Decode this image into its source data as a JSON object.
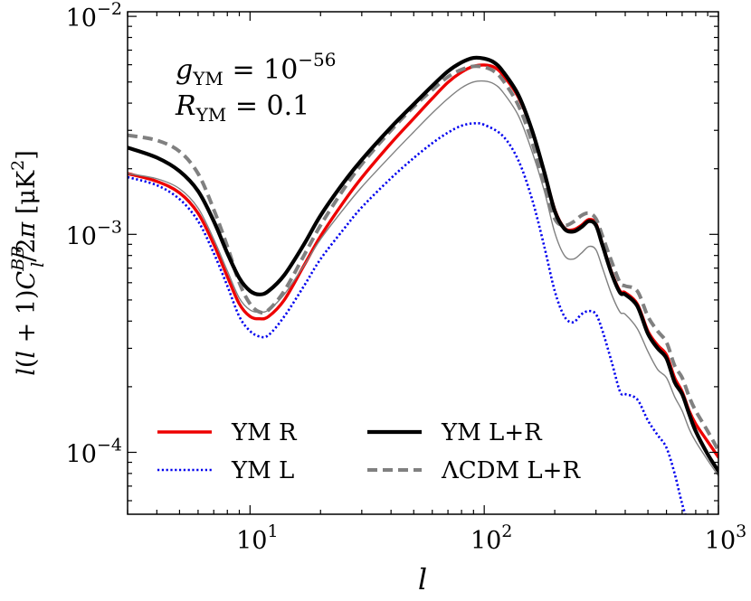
{
  "chart_data": {
    "type": "line",
    "title": "",
    "xlabel": "l",
    "ylabel": "l(l + 1)C_l^{BB}/2π  [μK²]",
    "xscale": "log",
    "yscale": "log",
    "xlim": [
      3,
      1000
    ],
    "ylim": [
      5.2e-05,
      0.0105
    ],
    "grid": false,
    "legend_position": "lower-left",
    "x_ticks": [
      {
        "value": 10,
        "base": "10",
        "exp": "1"
      },
      {
        "value": 100,
        "base": "10",
        "exp": "2"
      },
      {
        "value": 1000,
        "base": "10",
        "exp": "3"
      }
    ],
    "y_ticks": [
      {
        "value": 0.0001,
        "base": "10",
        "exp": "−4"
      },
      {
        "value": 0.001,
        "base": "10",
        "exp": "−3"
      },
      {
        "value": 0.01,
        "base": "10",
        "exp": "−2"
      }
    ],
    "annotations": [
      {
        "main": "g",
        "sub": "YM",
        "rest": " = 10",
        "sup": "−56"
      },
      {
        "main": "R",
        "sub": "YM",
        "rest": " = 0.1",
        "sup": ""
      }
    ],
    "series": [
      {
        "name": "YM L",
        "legend_label": "YM L",
        "color": "#0000ee",
        "style": "dotted",
        "x": [
          3,
          4,
          5,
          6,
          7,
          8,
          9,
          10,
          11,
          12,
          14,
          17,
          20,
          25,
          30,
          40,
          50,
          60,
          70,
          80,
          90,
          100,
          120,
          140,
          160,
          180,
          200,
          220,
          240,
          260,
          280,
          300,
          320,
          350,
          380,
          400,
          450,
          500,
          550,
          600,
          650,
          700,
          750
        ],
        "y": [
          0.00183,
          0.00168,
          0.00145,
          0.00115,
          0.00082,
          0.00058,
          0.00042,
          0.00036,
          0.00034,
          0.000345,
          0.00042,
          0.00058,
          0.00077,
          0.00105,
          0.00133,
          0.00181,
          0.00224,
          0.00262,
          0.00293,
          0.00315,
          0.00323,
          0.00318,
          0.00283,
          0.00218,
          0.00145,
          0.00089,
          0.00055,
          0.00042,
          0.000395,
          0.00043,
          0.000445,
          0.00043,
          0.00036,
          0.00026,
          0.00019,
          0.000185,
          0.000175,
          0.00014,
          0.00012,
          0.000105,
          8e-05,
          5.8e-05,
          4.6e-05
        ]
      },
      {
        "name": "YM R",
        "legend_label": "YM R",
        "color": "#ee0000",
        "style": "solid-medium",
        "x": [
          3,
          4,
          5,
          6,
          7,
          8,
          9,
          10,
          11,
          12,
          14,
          17,
          20,
          25,
          30,
          40,
          50,
          60,
          70,
          80,
          90,
          100,
          110,
          120,
          140,
          160,
          180,
          200,
          220,
          240,
          260,
          280,
          300,
          320,
          350,
          380,
          400,
          450,
          500,
          550,
          600,
          650,
          700,
          750,
          800,
          900,
          1000
        ],
        "y": [
          0.0019,
          0.00175,
          0.00155,
          0.00125,
          0.0009,
          0.00064,
          0.00048,
          0.00042,
          0.00041,
          0.00042,
          0.0005,
          0.00072,
          0.00098,
          0.0014,
          0.00182,
          0.00262,
          0.0034,
          0.0042,
          0.00498,
          0.00555,
          0.0059,
          0.00598,
          0.00585,
          0.0054,
          0.00425,
          0.003,
          0.00195,
          0.0013,
          0.00107,
          0.00105,
          0.0011,
          0.00117,
          0.00112,
          0.0009,
          0.00067,
          0.00055,
          0.00054,
          0.00048,
          0.00036,
          0.00031,
          0.00028,
          0.00022,
          0.00019,
          0.000155,
          0.000135,
          0.000112,
          9.5e-05
        ]
      },
      {
        "name": "YM L+R (thin)",
        "color": "#808080",
        "style": "solid-thin",
        "x": [
          3,
          4,
          5,
          6,
          7,
          8,
          9,
          10,
          11,
          12,
          14,
          17,
          20,
          25,
          30,
          40,
          50,
          60,
          70,
          80,
          90,
          100,
          110,
          120,
          140,
          160,
          180,
          200,
          220,
          240,
          260,
          280,
          300,
          320,
          350,
          380,
          400,
          450,
          500,
          550,
          600,
          650,
          700,
          750,
          800,
          900,
          1000
        ],
        "y": [
          0.0019,
          0.0018,
          0.00162,
          0.00132,
          0.00095,
          0.00068,
          0.00051,
          0.00045,
          0.00044,
          0.00045,
          0.00053,
          0.00072,
          0.00095,
          0.0013,
          0.00165,
          0.0023,
          0.00295,
          0.0036,
          0.0042,
          0.0047,
          0.005,
          0.00505,
          0.0049,
          0.0045,
          0.0035,
          0.0024,
          0.0016,
          0.00102,
          0.0008,
          0.00077,
          0.00082,
          0.00088,
          0.00085,
          0.0007,
          0.00053,
          0.00044,
          0.00043,
          0.00037,
          0.00029,
          0.00024,
          0.00022,
          0.00018,
          0.000155,
          0.000128,
          0.000112,
          9.2e-05,
          7.8e-05
        ]
      },
      {
        "name": "ΛCDM L+R",
        "legend_label": "ΛCDM L+R",
        "color": "#808080",
        "style": "dashed",
        "x": [
          3,
          4,
          5,
          6,
          7,
          8,
          9,
          10,
          11,
          12,
          14,
          17,
          20,
          25,
          30,
          40,
          50,
          60,
          70,
          80,
          90,
          100,
          110,
          120,
          140,
          160,
          180,
          200,
          220,
          240,
          260,
          280,
          300,
          320,
          350,
          380,
          400,
          450,
          500,
          550,
          600,
          650,
          700,
          750,
          800,
          900,
          1000
        ],
        "y": [
          0.00285,
          0.0027,
          0.0024,
          0.0019,
          0.0013,
          0.00088,
          0.0006,
          0.00048,
          0.00044,
          0.00045,
          0.00055,
          0.0008,
          0.0011,
          0.0016,
          0.0021,
          0.003,
          0.00385,
          0.0046,
          0.00528,
          0.0057,
          0.0059,
          0.00585,
          0.0056,
          0.0051,
          0.0039,
          0.00265,
          0.0017,
          0.00118,
          0.0011,
          0.00114,
          0.00122,
          0.00125,
          0.00118,
          0.00098,
          0.00075,
          0.0006,
          0.00058,
          0.00055,
          0.00042,
          0.00036,
          0.00032,
          0.00025,
          0.00022,
          0.00018,
          0.000155,
          0.000125,
          0.000102
        ]
      },
      {
        "name": "YM L+R",
        "legend_label": "YM L+R",
        "color": "#000000",
        "style": "solid-thick",
        "x": [
          3,
          4,
          5,
          6,
          7,
          8,
          9,
          10,
          11,
          12,
          14,
          17,
          20,
          25,
          30,
          40,
          50,
          60,
          70,
          80,
          90,
          100,
          110,
          120,
          140,
          160,
          180,
          200,
          220,
          240,
          260,
          280,
          300,
          320,
          350,
          380,
          400,
          450,
          500,
          550,
          600,
          650,
          700,
          750,
          800,
          900,
          1000
        ],
        "y": [
          0.0025,
          0.00225,
          0.00195,
          0.00158,
          0.00115,
          0.00082,
          0.00063,
          0.00055,
          0.00053,
          0.00055,
          0.00065,
          0.0009,
          0.00122,
          0.00172,
          0.0022,
          0.0031,
          0.00395,
          0.0048,
          0.0056,
          0.00615,
          0.00645,
          0.0064,
          0.00615,
          0.0056,
          0.00435,
          0.003,
          0.00195,
          0.00128,
          0.00106,
          0.00103,
          0.00108,
          0.00115,
          0.0011,
          0.00089,
          0.00066,
          0.00054,
          0.00053,
          0.00047,
          0.00035,
          0.0003,
          0.00027,
          0.00021,
          0.000185,
          0.00015,
          0.000125,
          9.8e-05,
          8.2e-05
        ]
      }
    ],
    "legend": [
      {
        "series": "YM R",
        "label": "YM R",
        "color": "#ee0000",
        "style": "solid-medium"
      },
      {
        "series": "YM L+R",
        "label": "YM L+R",
        "color": "#000000",
        "style": "solid-thick"
      },
      {
        "series": "YM L",
        "label": "YM L",
        "color": "#0000ee",
        "style": "dotted"
      },
      {
        "series": "ΛCDM L+R",
        "label": "ΛCDM L+R",
        "color": "#808080",
        "style": "dashed"
      }
    ]
  }
}
